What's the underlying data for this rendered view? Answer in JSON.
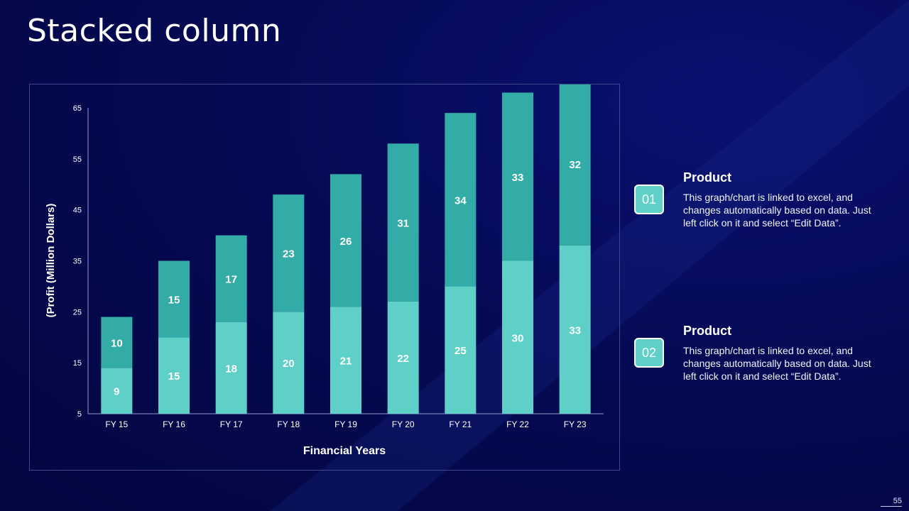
{
  "slide": {
    "title": "Stacked column",
    "page_number": "55"
  },
  "side_items": [
    {
      "badge": "01",
      "heading": "Product",
      "text": "This graph/chart is linked to excel, and changes automatically based on data. Just left click on it and select “Edit Data”."
    },
    {
      "badge": "02",
      "heading": "Product",
      "text": "This graph/chart is linked to excel, and changes automatically based on data. Just left click on it and select “Edit Data”."
    }
  ],
  "colors": {
    "series_bottom": "#5fd0c8",
    "series_top": "#33aca7",
    "axis": "#8f9ad0",
    "text": "#ffffff"
  },
  "chart_data": {
    "type": "bar",
    "stacked": true,
    "categories": [
      "FY 15",
      "FY 16",
      "FY 17",
      "FY 18",
      "FY 19",
      "FY 20",
      "FY 21",
      "FY 22",
      "FY 23"
    ],
    "series": [
      {
        "values": [
          9,
          15,
          18,
          20,
          21,
          22,
          25,
          30,
          33
        ]
      },
      {
        "values": [
          10,
          15,
          17,
          23,
          26,
          31,
          34,
          33,
          32
        ]
      }
    ],
    "xlabel": "Financial Years",
    "ylabel": "(Profit (Million Dollars)",
    "ylim": [
      5,
      65
    ],
    "yticks": [
      5,
      15,
      25,
      35,
      45,
      55,
      65
    ],
    "grid": false,
    "legend": false
  }
}
